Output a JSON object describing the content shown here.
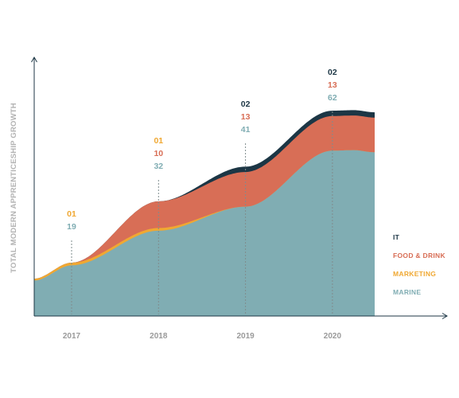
{
  "chart_data": {
    "type": "area",
    "stacked": true,
    "title": "",
    "xlabel": "",
    "ylabel": "TOTAL MODERN APPRENTICESHIP GROWTH",
    "categories": [
      "2017",
      "2018",
      "2019",
      "2020"
    ],
    "series": [
      {
        "name": "MARINE",
        "color": "#80adb3",
        "values": [
          19,
          32,
          41,
          62
        ]
      },
      {
        "name": "MARKETING",
        "color": "#f0a832",
        "values": [
          1,
          1,
          0,
          0
        ]
      },
      {
        "name": "FOOD & DRINK",
        "color": "#d86e56",
        "values": [
          0,
          10,
          13,
          13
        ]
      },
      {
        "name": "IT",
        "color": "#1c3645",
        "values": [
          0,
          0,
          2,
          2
        ]
      }
    ],
    "data_labels": [
      {
        "category": "2017",
        "labels": [
          {
            "text": "01",
            "color": "#f0a832"
          },
          {
            "text": "19",
            "color": "#80adb3"
          }
        ]
      },
      {
        "category": "2018",
        "labels": [
          {
            "text": "01",
            "color": "#f0a832"
          },
          {
            "text": "10",
            "color": "#d86e56"
          },
          {
            "text": "32",
            "color": "#80adb3"
          }
        ]
      },
      {
        "category": "2019",
        "labels": [
          {
            "text": "02",
            "color": "#1c3645"
          },
          {
            "text": "13",
            "color": "#d86e56"
          },
          {
            "text": "41",
            "color": "#80adb3"
          }
        ]
      },
      {
        "category": "2020",
        "labels": [
          {
            "text": "02",
            "color": "#1c3645"
          },
          {
            "text": "13",
            "color": "#d86e56"
          },
          {
            "text": "62",
            "color": "#80adb3"
          }
        ]
      }
    ],
    "legend": {
      "placement": "right",
      "entries": [
        {
          "name": "IT",
          "color": "#1c3645"
        },
        {
          "name": "FOOD & DRINK",
          "color": "#d86e56"
        },
        {
          "name": "MARKETING",
          "color": "#f0a832"
        },
        {
          "name": "MARINE",
          "color": "#80adb3"
        }
      ]
    },
    "axis_color": "#1c3645",
    "guide_color": "#7f8c8d",
    "grid": false
  }
}
